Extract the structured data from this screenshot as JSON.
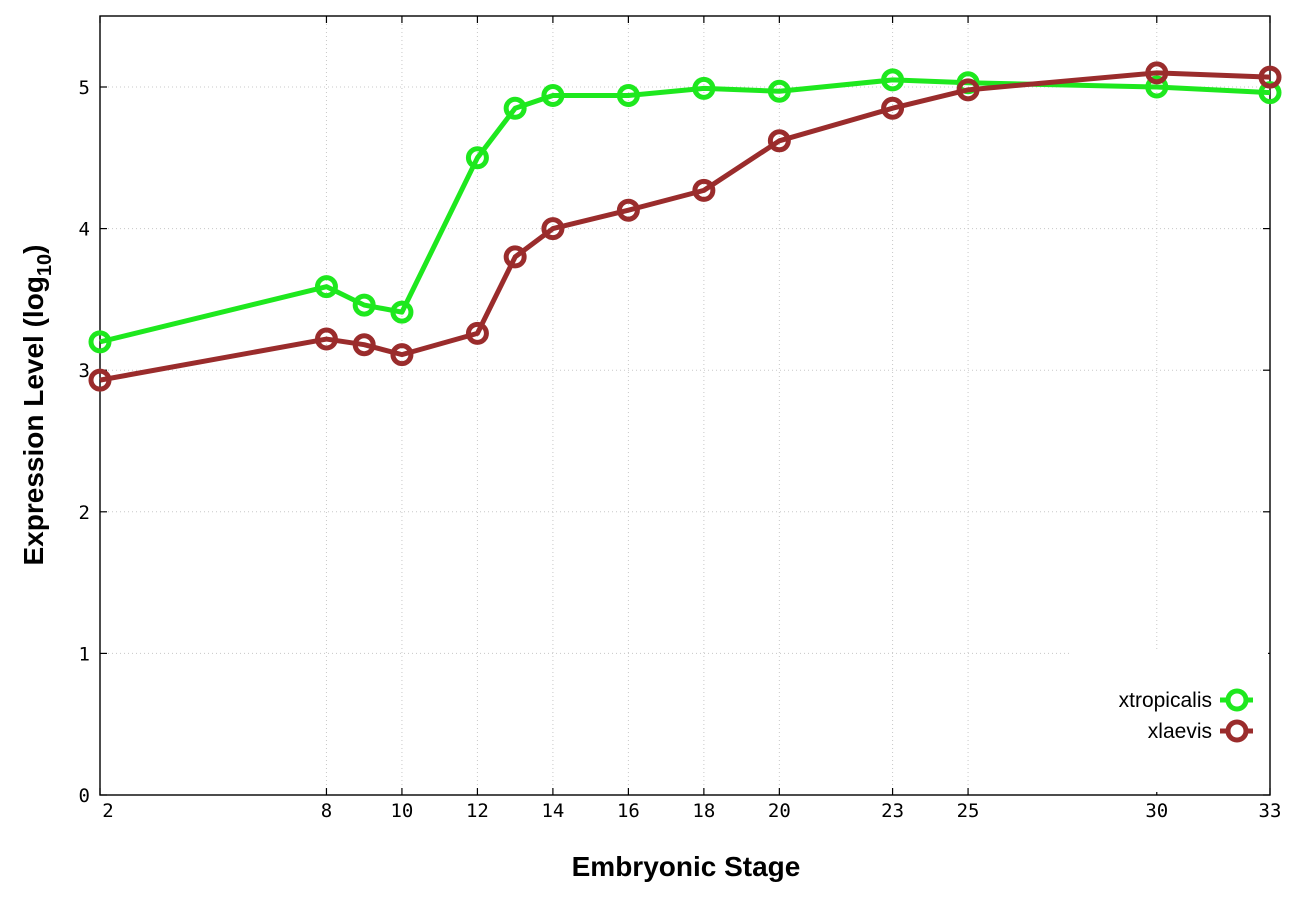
{
  "chart_data": {
    "type": "line",
    "xlabel": "Embryonic Stage",
    "ylabel": "Expression Level (log",
    "ylabel_subscript": "10",
    "ylabel_suffix": ")",
    "xlim": [
      2,
      33
    ],
    "ylim": [
      0,
      5.5
    ],
    "x_ticks": [
      2,
      8,
      10,
      12,
      14,
      16,
      18,
      20,
      23,
      25,
      30,
      33
    ],
    "y_ticks": [
      0,
      1,
      2,
      3,
      4,
      5
    ],
    "grid": true,
    "legend_position": "bottom-right",
    "x": [
      2,
      8,
      9,
      10,
      12,
      13,
      14,
      16,
      18,
      20,
      23,
      25,
      30,
      33
    ],
    "series": [
      {
        "name": "xtropicalis",
        "color": "#1ee81e",
        "values": [
          3.2,
          3.59,
          3.46,
          3.41,
          4.5,
          4.85,
          4.94,
          4.94,
          4.99,
          4.97,
          5.05,
          5.03,
          5.0,
          4.96
        ]
      },
      {
        "name": "xlaevis",
        "color": "#9a2c2c",
        "values": [
          2.93,
          3.22,
          3.18,
          3.11,
          3.26,
          3.8,
          4.0,
          4.13,
          4.27,
          4.62,
          4.85,
          4.98,
          5.1,
          5.07
        ]
      }
    ]
  }
}
